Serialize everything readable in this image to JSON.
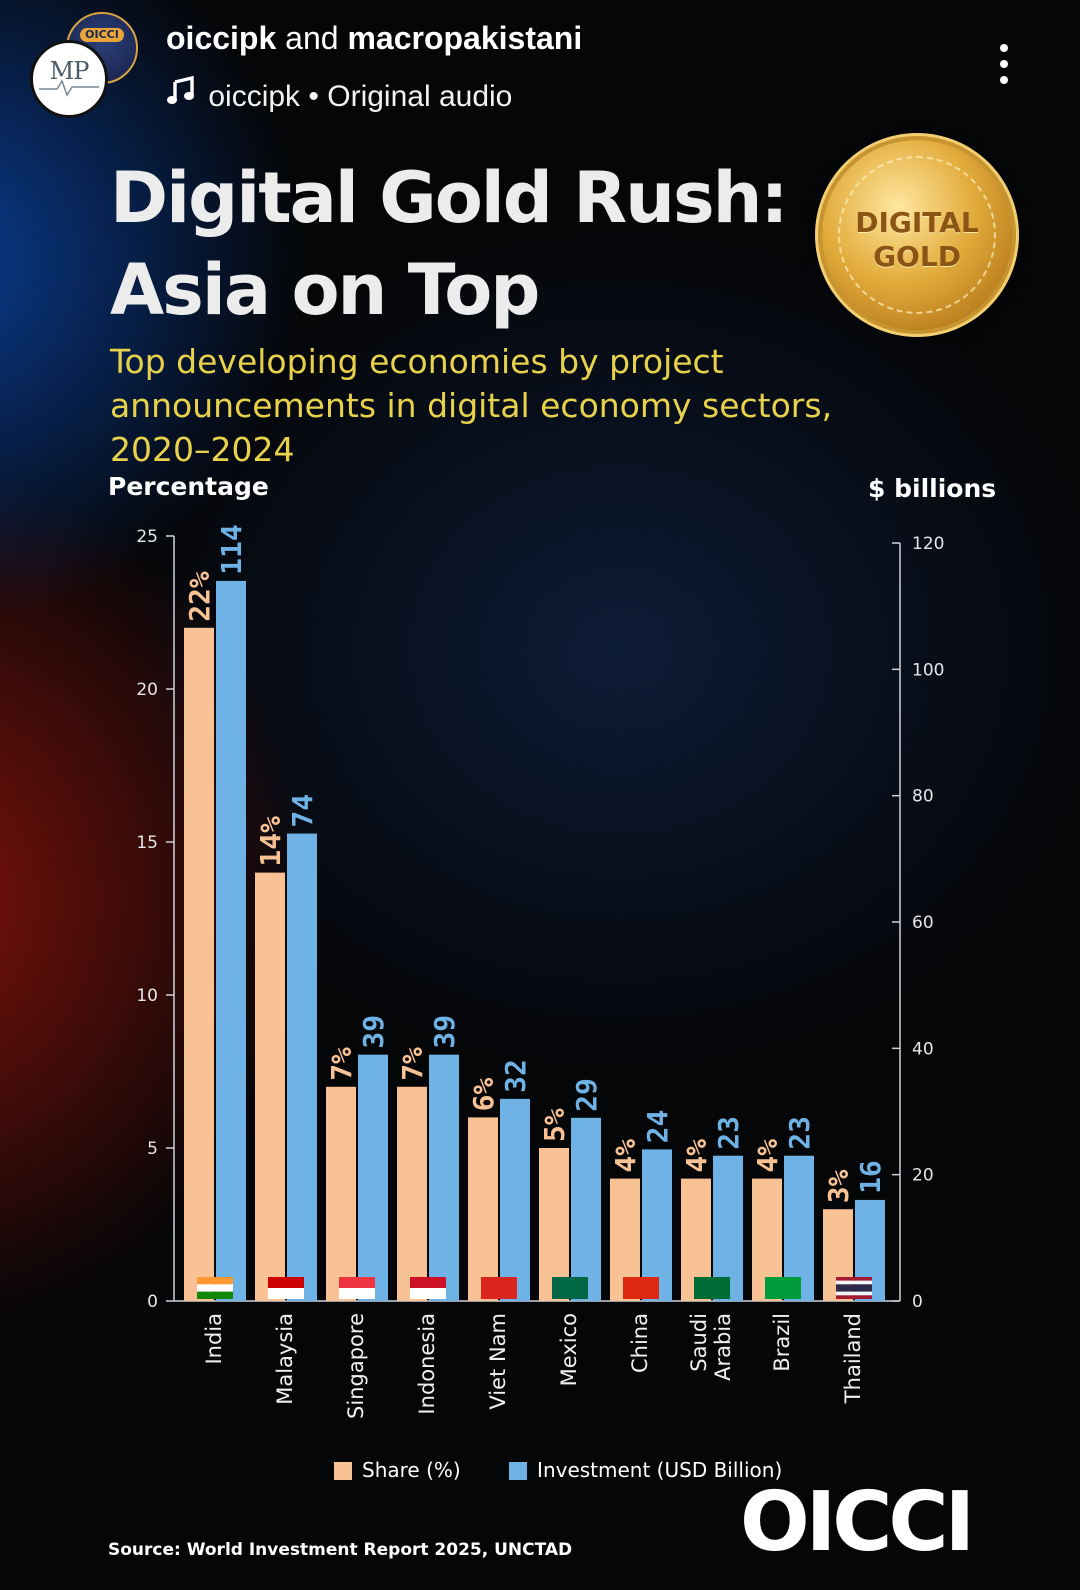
{
  "post": {
    "user1": "oiccipk",
    "joiner": "and",
    "user2": "macropakistani",
    "audio_user": "oiccipk",
    "audio_sep": "•",
    "audio_label": "Original audio",
    "avatar_back_text": "OICCI",
    "avatar_front_text": "MP"
  },
  "infographic": {
    "title_line1": "Digital Gold Rush:",
    "title_line2": "Asia on Top",
    "subtitle_line1": "Top developing economies by project",
    "subtitle_line2": "announcements in digital economy sectors,",
    "subtitle_line3": "2020–2024",
    "medal_line1": "DIGITAL",
    "medal_line2": "GOLD",
    "source": "Source: World Investment Report 2025, UNCTAD",
    "brand": "OICCI"
  },
  "colors": {
    "share": "#f9c294",
    "investment": "#6fb2e6",
    "subtitle": "#e8d24c"
  },
  "chart_data": {
    "type": "bar",
    "left_axis_title": "Percentage",
    "right_axis_title": "$ billions",
    "ylim_left": [
      0,
      25
    ],
    "ylim_right": [
      0,
      120
    ],
    "left_ticks": [
      0,
      5,
      10,
      15,
      20,
      25
    ],
    "right_ticks": [
      0,
      20,
      40,
      60,
      80,
      100,
      120
    ],
    "categories": [
      "India",
      "Malaysia",
      "Singapore",
      "Indonesia",
      "Viet Nam",
      "Mexico",
      "China",
      "Saudi Arabia",
      "Brazil",
      "Thailand"
    ],
    "series": [
      {
        "name": "Share (%)",
        "axis": "left",
        "values": [
          22,
          14,
          7,
          7,
          6,
          5,
          4,
          4,
          4,
          3
        ],
        "labels": [
          "22%",
          "14%",
          "7%",
          "7%",
          "6%",
          "5%",
          "4%",
          "4%",
          "4%",
          "3%"
        ]
      },
      {
        "name": "Investment (USD Billion)",
        "axis": "right",
        "values": [
          114,
          74,
          39,
          39,
          32,
          29,
          24,
          23,
          23,
          16
        ],
        "labels": [
          "114",
          "74",
          "39",
          "39",
          "32",
          "29",
          "24",
          "23",
          "23",
          "16"
        ]
      }
    ]
  }
}
